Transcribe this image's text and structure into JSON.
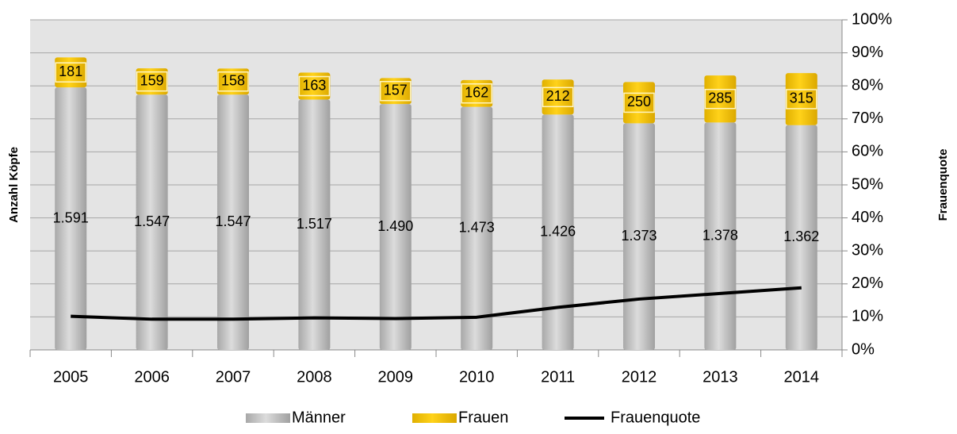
{
  "chart_data": {
    "type": "bar",
    "stacked": true,
    "y_label": "Anzahl Köpfe",
    "y2_label": "Frauenquote",
    "categories": [
      "2005",
      "2006",
      "2007",
      "2008",
      "2009",
      "2010",
      "2011",
      "2012",
      "2013",
      "2014"
    ],
    "series": [
      {
        "name": "Männer",
        "type": "bar",
        "color": "#c4c4c4",
        "values": [
          1591,
          1547,
          1547,
          1517,
          1490,
          1473,
          1426,
          1373,
          1378,
          1362
        ],
        "value_labels": [
          "1.591",
          "1.547",
          "1.547",
          "1.517",
          "1.490",
          "1.473",
          "1.426",
          "1.373",
          "1.378",
          "1.362"
        ]
      },
      {
        "name": "Frauen",
        "type": "bar",
        "color": "#f2c200",
        "values": [
          181,
          159,
          158,
          163,
          157,
          162,
          212,
          250,
          285,
          315
        ]
      },
      {
        "name": "Frauenquote",
        "type": "line",
        "axis": "y2",
        "color": "#000000",
        "values": [
          10.2,
          9.3,
          9.3,
          9.7,
          9.5,
          9.9,
          12.9,
          15.4,
          17.1,
          18.8
        ]
      }
    ],
    "ylim": [
      0,
      2000
    ],
    "y2lim": [
      0,
      100
    ],
    "y2ticks": [
      {
        "value": 0,
        "label": "0%"
      },
      {
        "value": 10,
        "label": "10%"
      },
      {
        "value": 20,
        "label": "20%"
      },
      {
        "value": 30,
        "label": "30%"
      },
      {
        "value": 40,
        "label": "40%"
      },
      {
        "value": 50,
        "label": "50%"
      },
      {
        "value": 60,
        "label": "60%"
      },
      {
        "value": 70,
        "label": "70%"
      },
      {
        "value": 80,
        "label": "80%"
      },
      {
        "value": 90,
        "label": "90%"
      },
      {
        "value": 100,
        "label": "100%"
      }
    ],
    "grid": true,
    "legend": "bottom"
  }
}
